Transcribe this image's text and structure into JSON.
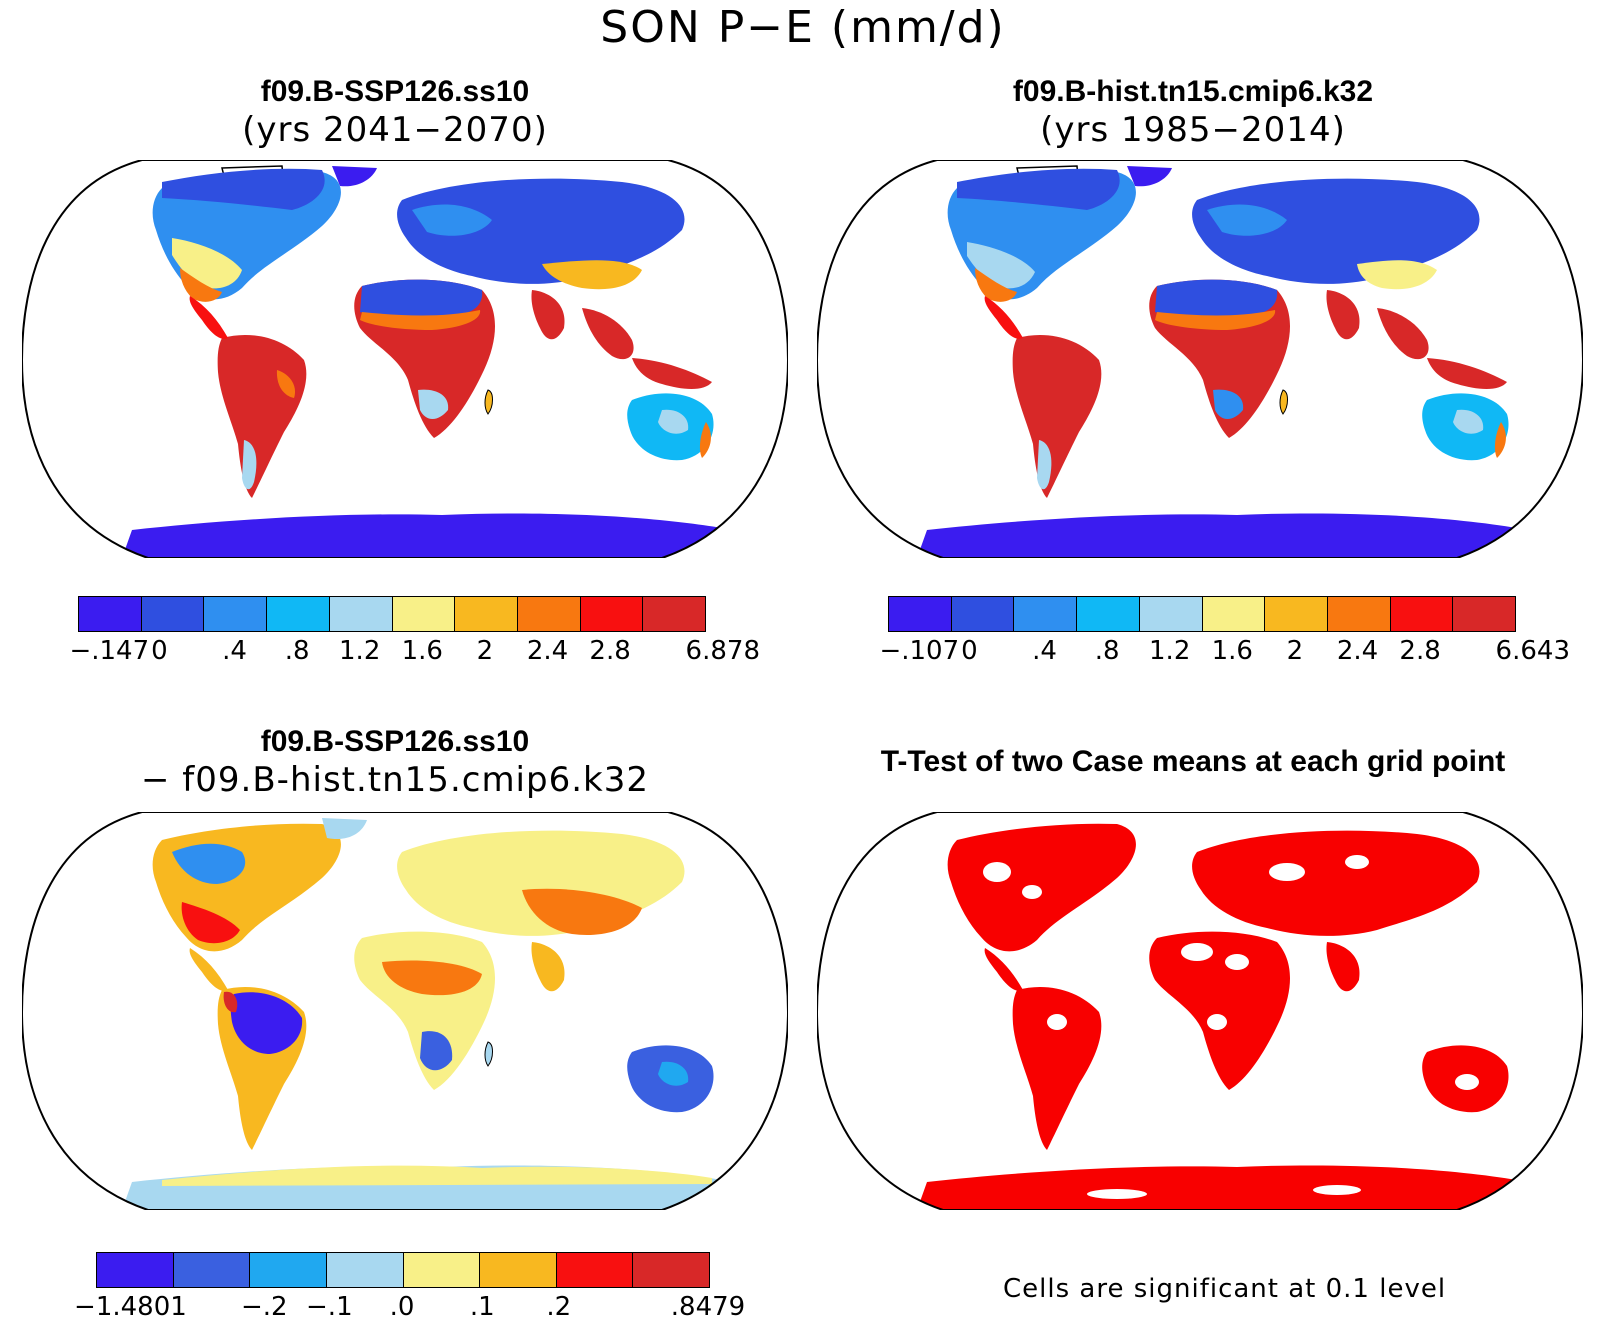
{
  "figure": {
    "title": "SON P−E (mm/d)"
  },
  "panels": [
    {
      "id": "case",
      "title_line1": "f09.B-SSP126.ss10",
      "title_line2": "(yrs 2041−2070)",
      "colorbar": {
        "colors": [
          "#3b1cf0",
          "#2f4fe0",
          "#2f8ff0",
          "#10b8f5",
          "#a8d8f0",
          "#f8f088",
          "#f8b820",
          "#f87810",
          "#f81010",
          "#d82828"
        ],
        "tick_labels": [
          "−.147",
          "0",
          ".4",
          ".8",
          "1.2",
          "1.6",
          "2",
          "2.4",
          "2.8",
          "6.878"
        ]
      }
    },
    {
      "id": "control",
      "title_line1": "f09.B-hist.tn15.cmip6.k32",
      "title_line2": "(yrs 1985−2014)",
      "colorbar": {
        "colors": [
          "#3b1cf0",
          "#2f4fe0",
          "#2f8ff0",
          "#10b8f5",
          "#a8d8f0",
          "#f8f088",
          "#f8b820",
          "#f87810",
          "#f81010",
          "#d82828"
        ],
        "tick_labels": [
          "−.107",
          "0",
          ".4",
          ".8",
          "1.2",
          "1.6",
          "2",
          "2.4",
          "2.8",
          "6.643"
        ]
      }
    },
    {
      "id": "difference",
      "title_line1": "f09.B-SSP126.ss10",
      "title_line2": "− f09.B-hist.tn15.cmip6.k32",
      "colorbar": {
        "colors": [
          "#3b1cf0",
          "#3a60e0",
          "#20a8f0",
          "#a8d8f0",
          "#f8f088",
          "#f8b820",
          "#f81010",
          "#d82828"
        ],
        "tick_labels": [
          "−1.4801",
          "−.2",
          "−.1",
          ".0",
          ".1",
          ".2",
          ".8479"
        ]
      }
    },
    {
      "id": "ttest",
      "title_line1": "T-Test of two Case means at each grid point",
      "note": "Cells are significant at 0.1 level",
      "colors": {
        "significant": "#f80000"
      }
    }
  ]
}
